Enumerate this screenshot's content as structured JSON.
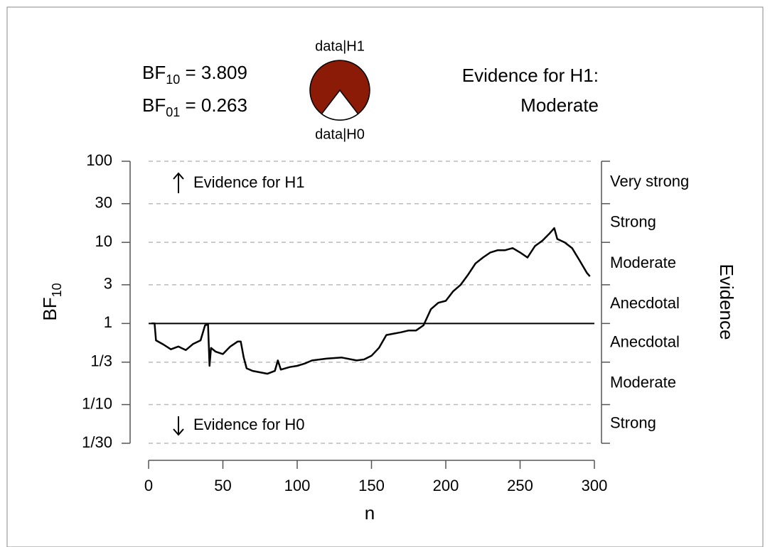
{
  "chart_data": {
    "type": "line",
    "bf10": {
      "name": "BF",
      "sub": "10",
      "eq": " = ",
      "value": 3.809
    },
    "bf01": {
      "name": "BF",
      "sub": "01",
      "eq": " = ",
      "value": 0.263
    },
    "pie_top_label": "data|H1",
    "pie_bottom_label": "data|H0",
    "evidence_title": "Evidence for H1:",
    "evidence_level": "Moderate",
    "pie_color": "#8b1a06",
    "annotation_top": "Evidence for H1",
    "annotation_bottom": "Evidence for H0",
    "xlabel": "n",
    "ylabel": {
      "name": "BF",
      "sub": "10"
    },
    "right_axis_title": "Evidence",
    "right_axis_labels": [
      "Strong",
      "Moderate",
      "Anecdotal",
      "Anecdotal",
      "Moderate",
      "Strong",
      "Very strong"
    ],
    "x": [
      2,
      4,
      5,
      10,
      15,
      20,
      25,
      30,
      35,
      38,
      40,
      41,
      42,
      45,
      50,
      55,
      60,
      62,
      64,
      66,
      70,
      75,
      80,
      85,
      87,
      89,
      95,
      100,
      105,
      110,
      120,
      130,
      140,
      145,
      150,
      155,
      160,
      165,
      170,
      175,
      180,
      185,
      190,
      195,
      200,
      205,
      210,
      215,
      220,
      225,
      230,
      235,
      240,
      245,
      250,
      255,
      260,
      265,
      270,
      273,
      275,
      280,
      285,
      290,
      295,
      297
    ],
    "values": [
      1.0,
      1.0,
      0.62,
      0.55,
      0.48,
      0.52,
      0.47,
      0.56,
      0.62,
      0.95,
      0.98,
      0.3,
      0.5,
      0.45,
      0.42,
      0.52,
      0.6,
      0.6,
      0.38,
      0.28,
      0.26,
      0.25,
      0.24,
      0.26,
      0.35,
      0.27,
      0.29,
      0.3,
      0.32,
      0.35,
      0.37,
      0.38,
      0.35,
      0.36,
      0.4,
      0.5,
      0.72,
      0.75,
      0.78,
      0.82,
      0.82,
      0.95,
      1.5,
      1.8,
      1.9,
      2.5,
      3.0,
      4.0,
      5.5,
      6.5,
      7.5,
      8.0,
      8.0,
      8.5,
      7.5,
      6.5,
      9.0,
      10.5,
      13,
      15,
      11,
      10,
      8.5,
      6,
      4.2,
      3.809
    ],
    "color": "#000000",
    "xlim": [
      0,
      300
    ],
    "xticks": [
      0,
      50,
      100,
      150,
      200,
      250,
      300
    ],
    "ylim": [
      0.0333333,
      100
    ],
    "yticks": [
      {
        "value": 0.0333333,
        "label": "1/30"
      },
      {
        "value": 0.1,
        "label": "1/10"
      },
      {
        "value": 0.333333,
        "label": "1/3"
      },
      1,
      3,
      10,
      30,
      100
    ],
    "ylog": true,
    "grid": true,
    "hline": 1
  }
}
